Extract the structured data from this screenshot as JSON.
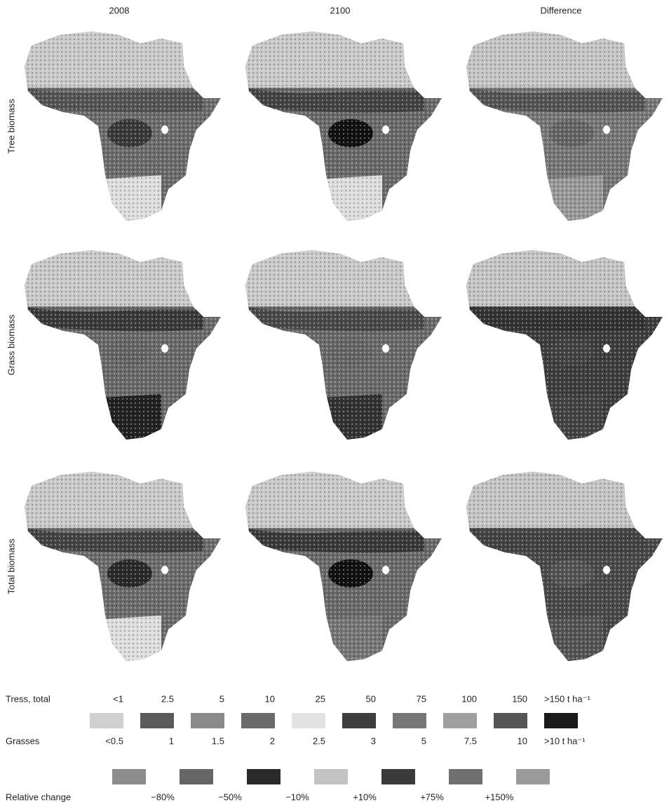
{
  "columns": [
    "2008",
    "2100",
    "Difference"
  ],
  "rows": [
    "Tree biomass",
    "Grass biomass",
    "Total biomass"
  ],
  "legend": {
    "trees_label": "Tress, total",
    "trees_values": [
      "<1",
      "2.5",
      "5",
      "10",
      "25",
      "50",
      "75",
      "100",
      "150",
      ">150 t ha⁻¹"
    ],
    "grasses_label": "Grasses",
    "grasses_values": [
      "<0.5",
      "1",
      "1.5",
      "2",
      "2.5",
      "3",
      "5",
      "7.5",
      "10",
      ">10 t ha⁻¹"
    ],
    "biomass_colors": [
      "#cfcfcf",
      "#5a5a5a",
      "#8a8a8a",
      "#6a6a6a",
      "#e2e2e2",
      "#3e3e3e",
      "#777777",
      "#a0a0a0",
      "#555555",
      "#1a1a1a"
    ],
    "change_label": "Relative change",
    "change_values": [
      "−80%",
      "−50%",
      "−10%",
      "+10%",
      "+75%",
      "+150%"
    ],
    "change_colors": [
      "#8c8c8c",
      "#666666",
      "#2a2a2a",
      "#c4c4c4",
      "#3a3a3a",
      "#707070",
      "#9a9a9a"
    ]
  }
}
